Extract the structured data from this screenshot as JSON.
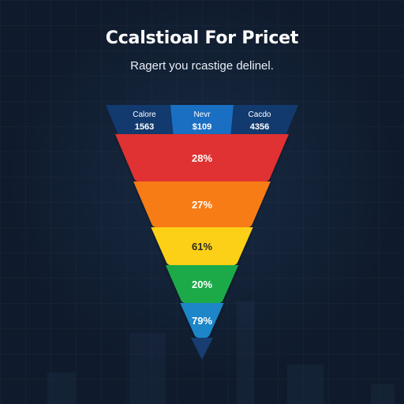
{
  "title": "Ccalstioal For Pricet",
  "subtitle": "Ragert you rcastige delinel.",
  "header_columns": [
    {
      "label": "Calore",
      "value": "1563",
      "color": "#123a6e"
    },
    {
      "label": "Nevr",
      "value": "$109",
      "color": "#1a6fc2"
    },
    {
      "label": "Cacdo",
      "value": "4356",
      "color": "#123a6e"
    }
  ],
  "stages": [
    {
      "label": "28%",
      "color": "#e03131",
      "text_color": "#ffffff"
    },
    {
      "label": "27%",
      "color": "#f77b16",
      "text_color": "#ffffff"
    },
    {
      "label": "61%",
      "color": "#fcd018",
      "text_color": "#2a2a2a"
    },
    {
      "label": "20%",
      "color": "#1faa4a",
      "text_color": "#ffffff"
    },
    {
      "label": "79%",
      "color": "#1c86c8",
      "text_color": "#ffffff"
    }
  ],
  "tip_color": "#173d72"
}
